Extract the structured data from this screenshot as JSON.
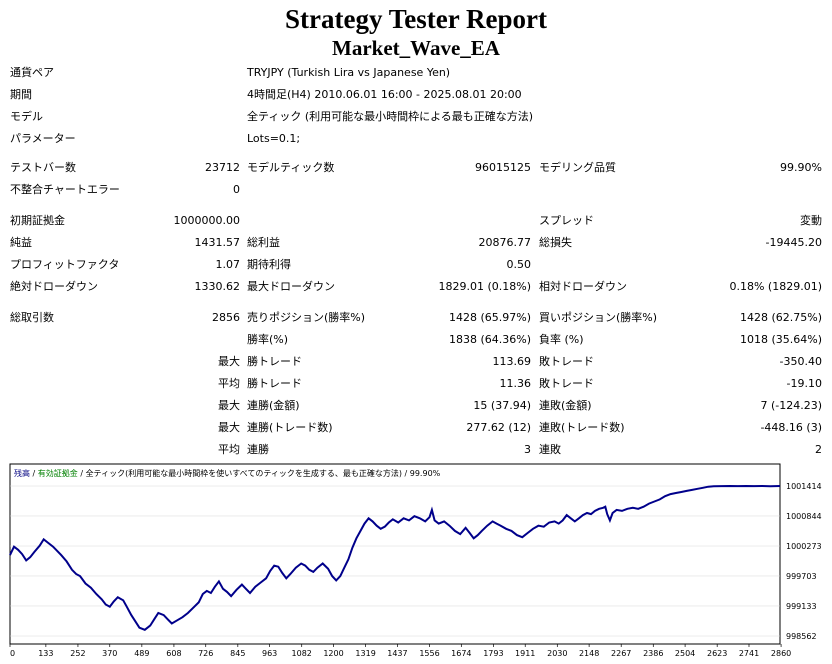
{
  "header": {
    "title": "Strategy Tester Report",
    "subtitle": "Market_Wave_EA"
  },
  "info": {
    "symbol_label": "通貨ペア",
    "symbol_value": "TRYJPY (Turkish Lira vs Japanese Yen)",
    "period_label": "期間",
    "period_value": "4時間足(H4) 2010.06.01 16:00 - 2025.08.01 20:00",
    "model_label": "モデル",
    "model_value": "全ティック (利用可能な最小時間枠による最も正確な方法)",
    "params_label": "パラメーター",
    "params_value": "Lots=0.1;"
  },
  "stats": {
    "bars_label": "テストバー数",
    "bars_value": "23712",
    "ticks_label": "モデルティック数",
    "ticks_value": "96015125",
    "quality_label": "モデリング品質",
    "quality_value": "99.90%",
    "mismatch_label": "不整合チャートエラー",
    "mismatch_value": "0",
    "deposit_label": "初期証拠金",
    "deposit_value": "1000000.00",
    "spread_label": "スプレッド",
    "spread_value": "変動",
    "net_label": "純益",
    "net_value": "1431.57",
    "gross_profit_label": "総利益",
    "gross_profit_value": "20876.77",
    "gross_loss_label": "総損失",
    "gross_loss_value": "-19445.20",
    "pf_label": "プロフィットファクタ",
    "pf_value": "1.07",
    "expected_label": "期待利得",
    "expected_value": "0.50",
    "abs_dd_label": "絶対ドローダウン",
    "abs_dd_value": "1330.62",
    "max_dd_label": "最大ドローダウン",
    "max_dd_value": "1829.01 (0.18%)",
    "rel_dd_label": "相対ドローダウン",
    "rel_dd_value": "0.18% (1829.01)",
    "trades_label": "総取引数",
    "trades_value": "2856",
    "short_label": "売りポジション(勝率%)",
    "short_value": "1428 (65.97%)",
    "long_label": "買いポジション(勝率%)",
    "long_value": "1428 (62.75%)",
    "win_label": "勝率(%)",
    "win_value": "1838 (64.36%)",
    "loss_label": "負率 (%)",
    "loss_value": "1018 (35.64%)",
    "max_word": "最大",
    "avg_word": "平均",
    "largest_win_label": "勝トレード",
    "largest_win_value": "113.69",
    "largest_loss_label": "敗トレード",
    "largest_loss_value": "-350.40",
    "avg_win_label": "勝トレード",
    "avg_win_value": "11.36",
    "avg_loss_label": "敗トレード",
    "avg_loss_value": "-19.10",
    "max_cons_win_label": "連勝(金額)",
    "max_cons_win_value": "15 (37.94)",
    "max_cons_loss_label": "連敗(金額)",
    "max_cons_loss_value": "7 (-124.23)",
    "max_cons_profit_label": "連勝(トレード数)",
    "max_cons_profit_value": "277.62 (12)",
    "max_cons_lossamt_label": "連敗(トレード数)",
    "max_cons_lossamt_value": "-448.16 (3)",
    "avg_cons_win_label": "連勝",
    "avg_cons_win_value": "3",
    "avg_cons_loss_label": "連敗",
    "avg_cons_loss_value": "2"
  },
  "chart_data": {
    "type": "line",
    "legend": {
      "balance": "残高",
      "sep1": " / ",
      "equity": "有効証拠金",
      "sep2": " / ",
      "model": "全ティック(利用可能な最小時間枠を使いすべてのティックを生成する、最も正確な方法)",
      "sep3": " / ",
      "quality": "99.90%"
    },
    "colors": {
      "line": "#00008b",
      "balance_label": "#000080",
      "equity_label": "#008000"
    },
    "x_ticks": [
      0,
      133,
      252,
      370,
      489,
      608,
      726,
      845,
      963,
      1082,
      1200,
      1319,
      1437,
      1556,
      1674,
      1793,
      1911,
      2030,
      2148,
      2267,
      2386,
      2504,
      2623,
      2741,
      2860
    ],
    "y_ticks": [
      1001414,
      1000844,
      1000273,
      999703,
      999133,
      998562
    ],
    "xlim": [
      0,
      2856
    ],
    "ylim": [
      998562,
      1001414
    ],
    "series": [
      {
        "values_xy": [
          [
            0,
            1000100
          ],
          [
            15,
            1000260
          ],
          [
            30,
            1000200
          ],
          [
            45,
            1000120
          ],
          [
            60,
            1000000
          ],
          [
            75,
            1000060
          ],
          [
            90,
            1000160
          ],
          [
            110,
            1000280
          ],
          [
            125,
            1000400
          ],
          [
            140,
            1000340
          ],
          [
            160,
            1000260
          ],
          [
            175,
            1000180
          ],
          [
            190,
            1000100
          ],
          [
            210,
            999980
          ],
          [
            230,
            999820
          ],
          [
            245,
            999740
          ],
          [
            260,
            999700
          ],
          [
            280,
            999560
          ],
          [
            300,
            999480
          ],
          [
            320,
            999360
          ],
          [
            340,
            999260
          ],
          [
            355,
            999160
          ],
          [
            370,
            999120
          ],
          [
            385,
            999220
          ],
          [
            400,
            999300
          ],
          [
            420,
            999240
          ],
          [
            435,
            999100
          ],
          [
            450,
            998960
          ],
          [
            465,
            998840
          ],
          [
            480,
            998720
          ],
          [
            500,
            998680
          ],
          [
            520,
            998760
          ],
          [
            535,
            998880
          ],
          [
            550,
            999000
          ],
          [
            570,
            998960
          ],
          [
            585,
            998880
          ],
          [
            600,
            998800
          ],
          [
            620,
            998860
          ],
          [
            640,
            998920
          ],
          [
            660,
            999000
          ],
          [
            680,
            999100
          ],
          [
            700,
            999200
          ],
          [
            715,
            999360
          ],
          [
            730,
            999420
          ],
          [
            745,
            999380
          ],
          [
            760,
            999500
          ],
          [
            775,
            999600
          ],
          [
            790,
            999460
          ],
          [
            805,
            999400
          ],
          [
            820,
            999320
          ],
          [
            840,
            999440
          ],
          [
            860,
            999540
          ],
          [
            875,
            999460
          ],
          [
            890,
            999380
          ],
          [
            910,
            999500
          ],
          [
            930,
            999580
          ],
          [
            950,
            999660
          ],
          [
            965,
            999800
          ],
          [
            980,
            999900
          ],
          [
            995,
            999880
          ],
          [
            1010,
            999760
          ],
          [
            1025,
            999660
          ],
          [
            1040,
            999740
          ],
          [
            1060,
            999860
          ],
          [
            1080,
            999940
          ],
          [
            1095,
            999900
          ],
          [
            1110,
            999820
          ],
          [
            1125,
            999780
          ],
          [
            1140,
            999860
          ],
          [
            1160,
            999940
          ],
          [
            1180,
            999840
          ],
          [
            1195,
            999700
          ],
          [
            1210,
            999620
          ],
          [
            1225,
            999700
          ],
          [
            1240,
            999860
          ],
          [
            1255,
            1000020
          ],
          [
            1270,
            1000240
          ],
          [
            1285,
            1000420
          ],
          [
            1300,
            1000560
          ],
          [
            1315,
            1000700
          ],
          [
            1330,
            1000800
          ],
          [
            1345,
            1000740
          ],
          [
            1360,
            1000660
          ],
          [
            1375,
            1000600
          ],
          [
            1390,
            1000640
          ],
          [
            1405,
            1000720
          ],
          [
            1420,
            1000780
          ],
          [
            1440,
            1000720
          ],
          [
            1460,
            1000800
          ],
          [
            1480,
            1000760
          ],
          [
            1500,
            1000840
          ],
          [
            1520,
            1000800
          ],
          [
            1540,
            1000740
          ],
          [
            1556,
            1000820
          ],
          [
            1565,
            1000960
          ],
          [
            1575,
            1000760
          ],
          [
            1590,
            1000700
          ],
          [
            1610,
            1000740
          ],
          [
            1630,
            1000660
          ],
          [
            1650,
            1000560
          ],
          [
            1670,
            1000500
          ],
          [
            1690,
            1000620
          ],
          [
            1705,
            1000520
          ],
          [
            1720,
            1000420
          ],
          [
            1735,
            1000480
          ],
          [
            1750,
            1000560
          ],
          [
            1770,
            1000660
          ],
          [
            1790,
            1000740
          ],
          [
            1805,
            1000700
          ],
          [
            1820,
            1000660
          ],
          [
            1840,
            1000600
          ],
          [
            1860,
            1000560
          ],
          [
            1880,
            1000480
          ],
          [
            1900,
            1000440
          ],
          [
            1920,
            1000520
          ],
          [
            1940,
            1000600
          ],
          [
            1960,
            1000660
          ],
          [
            1980,
            1000640
          ],
          [
            2000,
            1000720
          ],
          [
            2020,
            1000740
          ],
          [
            2035,
            1000700
          ],
          [
            2050,
            1000760
          ],
          [
            2065,
            1000860
          ],
          [
            2080,
            1000800
          ],
          [
            2095,
            1000740
          ],
          [
            2110,
            1000800
          ],
          [
            2125,
            1000860
          ],
          [
            2140,
            1000900
          ],
          [
            2155,
            1000880
          ],
          [
            2170,
            1000940
          ],
          [
            2185,
            1000980
          ],
          [
            2200,
            1001000
          ],
          [
            2208,
            1001020
          ],
          [
            2215,
            1000880
          ],
          [
            2225,
            1000760
          ],
          [
            2235,
            1000900
          ],
          [
            2250,
            1000960
          ],
          [
            2270,
            1000940
          ],
          [
            2290,
            1000980
          ],
          [
            2310,
            1001000
          ],
          [
            2330,
            1000980
          ],
          [
            2350,
            1001020
          ],
          [
            2370,
            1001080
          ],
          [
            2390,
            1001120
          ],
          [
            2410,
            1001160
          ],
          [
            2430,
            1001220
          ],
          [
            2450,
            1001260
          ],
          [
            2470,
            1001280
          ],
          [
            2490,
            1001300
          ],
          [
            2510,
            1001320
          ],
          [
            2530,
            1001340
          ],
          [
            2550,
            1001360
          ],
          [
            2570,
            1001380
          ],
          [
            2590,
            1001400
          ],
          [
            2610,
            1001410
          ],
          [
            2640,
            1001412
          ],
          [
            2670,
            1001414
          ],
          [
            2700,
            1001412
          ],
          [
            2730,
            1001414
          ],
          [
            2760,
            1001412
          ],
          [
            2790,
            1001414
          ],
          [
            2820,
            1001410
          ],
          [
            2856,
            1001414
          ]
        ]
      }
    ]
  }
}
